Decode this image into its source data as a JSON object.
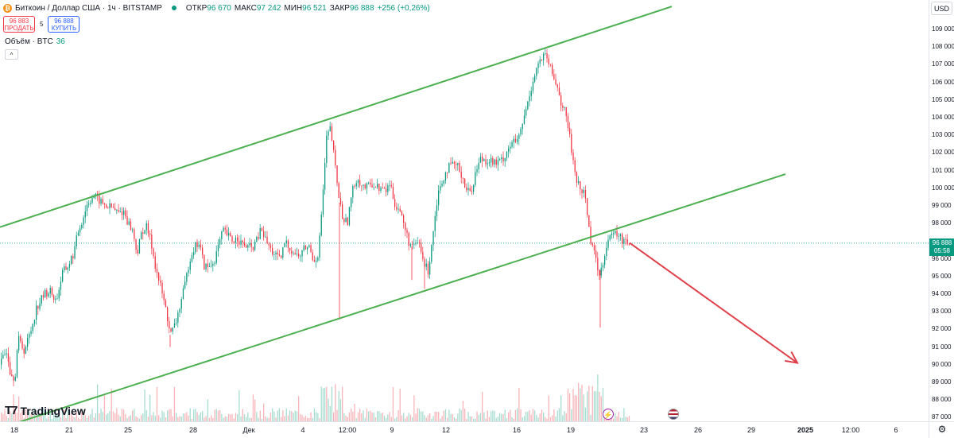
{
  "symbol": {
    "title": "Биткоин / Доллар США · 1ч · BITSTAMP",
    "icon": "bitcoin-icon",
    "ohlc": [
      {
        "label": "ОТКР",
        "value": "96 670"
      },
      {
        "label": "МАКС",
        "value": "97 242"
      },
      {
        "label": "МИН",
        "value": "96 521"
      },
      {
        "label": "ЗАКР",
        "value": "96 888"
      }
    ],
    "change": "+256 (+0,26%)"
  },
  "trade": {
    "sell_price": "96 883",
    "sell_label": "ПРОДАТЬ",
    "spread": "5",
    "buy_price": "96 888",
    "buy_label": "КУПИТЬ"
  },
  "volume": {
    "label": "Объём · BTC",
    "value": "36"
  },
  "price_axis": {
    "currency": "USD",
    "labels": [
      "109 000",
      "108 000",
      "107 000",
      "106 000",
      "105 000",
      "104 000",
      "103 000",
      "102 000",
      "101 000",
      "100 000",
      "99 000",
      "98 000",
      "96 000",
      "95 000",
      "94 000",
      "93 000",
      "92 000",
      "91 000",
      "90 000",
      "89 000",
      "88 000",
      "87 000"
    ],
    "last_price": "96 888",
    "countdown": "05:58"
  },
  "time_axis": {
    "labels": [
      "18",
      "21",
      "25",
      "28",
      "Дек",
      "4",
      "12:00",
      "9",
      "12",
      "16",
      "19",
      "23",
      "26",
      "29",
      "2025",
      "12:00",
      "6"
    ]
  },
  "branding": {
    "logo_text": "TradingView"
  },
  "colors": {
    "up": "#089981",
    "down": "#f23645",
    "trendline": "#4caf50",
    "arrow": "#e0404a"
  },
  "chart_data": {
    "type": "candlestick",
    "interval": "1ч",
    "ylim": [
      86800,
      109500
    ],
    "last": 96888,
    "path_points": [
      [
        0,
        90000
      ],
      [
        8,
        90900
      ],
      [
        12,
        89700
      ],
      [
        18,
        89200
      ],
      [
        22,
        91500
      ],
      [
        30,
        90800
      ],
      [
        38,
        91900
      ],
      [
        45,
        93200
      ],
      [
        55,
        94000
      ],
      [
        62,
        94200
      ],
      [
        70,
        93600
      ],
      [
        78,
        95200
      ],
      [
        85,
        95600
      ],
      [
        92,
        96300
      ],
      [
        98,
        97600
      ],
      [
        103,
        98200
      ],
      [
        108,
        99000
      ],
      [
        115,
        99500
      ],
      [
        118,
        99600
      ],
      [
        124,
        99300
      ],
      [
        132,
        99000
      ],
      [
        140,
        98900
      ],
      [
        148,
        98600
      ],
      [
        155,
        98700
      ],
      [
        160,
        98100
      ],
      [
        166,
        97600
      ],
      [
        172,
        96300
      ],
      [
        178,
        97600
      ],
      [
        184,
        97800
      ],
      [
        190,
        96800
      ],
      [
        196,
        95300
      ],
      [
        202,
        94300
      ],
      [
        208,
        93100
      ],
      [
        214,
        91700
      ],
      [
        220,
        92300
      ],
      [
        226,
        93400
      ],
      [
        232,
        94500
      ],
      [
        238,
        96000
      ],
      [
        244,
        96700
      ],
      [
        250,
        96900
      ],
      [
        256,
        95600
      ],
      [
        262,
        95500
      ],
      [
        268,
        95800
      ],
      [
        274,
        96700
      ],
      [
        280,
        97600
      ],
      [
        286,
        97300
      ],
      [
        292,
        97000
      ],
      [
        298,
        97200
      ],
      [
        304,
        96800
      ],
      [
        310,
        96700
      ],
      [
        316,
        96600
      ],
      [
        322,
        97000
      ],
      [
        328,
        97700
      ],
      [
        334,
        97000
      ],
      [
        340,
        96500
      ],
      [
        346,
        96200
      ],
      [
        352,
        95900
      ],
      [
        358,
        97000
      ],
      [
        364,
        96600
      ],
      [
        370,
        96300
      ],
      [
        376,
        96100
      ],
      [
        382,
        96600
      ],
      [
        388,
        96700
      ],
      [
        394,
        95900
      ],
      [
        400,
        96300
      ],
      [
        406,
        100000
      ],
      [
        410,
        102800
      ],
      [
        415,
        103400
      ],
      [
        420,
        101600
      ],
      [
        425,
        99700
      ],
      [
        430,
        98400
      ],
      [
        436,
        98000
      ],
      [
        442,
        99700
      ],
      [
        448,
        100600
      ],
      [
        454,
        100200
      ],
      [
        460,
        100000
      ],
      [
        466,
        100300
      ],
      [
        472,
        100100
      ],
      [
        478,
        100000
      ],
      [
        484,
        99800
      ],
      [
        490,
        100300
      ],
      [
        496,
        99100
      ],
      [
        502,
        98800
      ],
      [
        508,
        97800
      ],
      [
        514,
        96900
      ],
      [
        520,
        96600
      ],
      [
        526,
        97000
      ],
      [
        532,
        95800
      ],
      [
        538,
        95300
      ],
      [
        544,
        97500
      ],
      [
        550,
        99700
      ],
      [
        556,
        100500
      ],
      [
        562,
        101100
      ],
      [
        568,
        101300
      ],
      [
        574,
        101300
      ],
      [
        580,
        100800
      ],
      [
        586,
        99900
      ],
      [
        592,
        99800
      ],
      [
        598,
        101000
      ],
      [
        604,
        101700
      ],
      [
        610,
        101600
      ],
      [
        616,
        101600
      ],
      [
        622,
        101400
      ],
      [
        628,
        101500
      ],
      [
        634,
        101800
      ],
      [
        640,
        102400
      ],
      [
        646,
        102600
      ],
      [
        652,
        102800
      ],
      [
        658,
        103900
      ],
      [
        664,
        105000
      ],
      [
        670,
        106200
      ],
      [
        676,
        107000
      ],
      [
        680,
        107300
      ],
      [
        686,
        107500
      ],
      [
        690,
        107000
      ],
      [
        696,
        106200
      ],
      [
        702,
        105600
      ],
      [
        706,
        104600
      ],
      [
        710,
        104300
      ],
      [
        714,
        103500
      ],
      [
        718,
        102200
      ],
      [
        722,
        101100
      ],
      [
        726,
        100300
      ],
      [
        730,
        99800
      ],
      [
        734,
        99900
      ],
      [
        738,
        98600
      ],
      [
        742,
        97100
      ],
      [
        746,
        96800
      ],
      [
        750,
        95500
      ],
      [
        754,
        95200
      ],
      [
        758,
        95900
      ],
      [
        762,
        96800
      ],
      [
        766,
        97300
      ],
      [
        770,
        97200
      ],
      [
        774,
        97500
      ],
      [
        778,
        97300
      ],
      [
        782,
        97000
      ],
      [
        786,
        97200
      ],
      [
        790,
        96900
      ],
      [
        792,
        96888
      ]
    ],
    "volume_scale_note": "",
    "trendlines": [
      {
        "from": [
          0,
          97800
        ],
        "to": [
          845,
          110300
        ]
      },
      {
        "from": [
          0,
          86400
        ],
        "to": [
          988,
          100800
        ]
      }
    ],
    "arrow": {
      "from": [
        792,
        96900
      ],
      "to": [
        1003,
        90100
      ]
    }
  }
}
